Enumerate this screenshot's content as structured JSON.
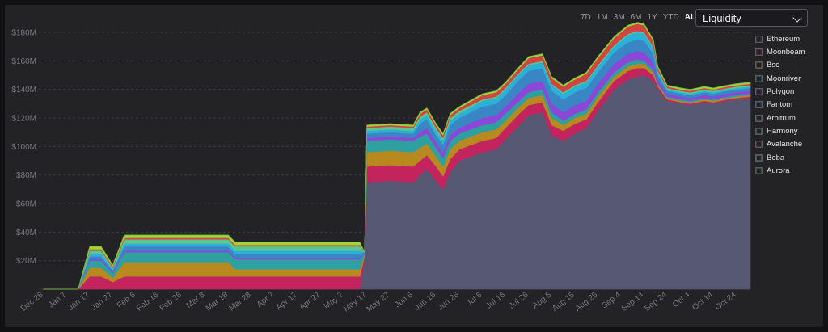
{
  "time_ranges": [
    {
      "label": "7D",
      "active": false
    },
    {
      "label": "1M",
      "active": false
    },
    {
      "label": "3M",
      "active": false
    },
    {
      "label": "6M",
      "active": false
    },
    {
      "label": "1Y",
      "active": false
    },
    {
      "label": "YTD",
      "active": false
    },
    {
      "label": "ALL",
      "active": true
    }
  ],
  "metric_select": {
    "value": "Liquidity",
    "icon": "chevron-down-icon"
  },
  "chart_data": {
    "type": "area",
    "stacked": true,
    "y_tick_labels": [
      "$20M",
      "$40M",
      "$60M",
      "$80M",
      "$100M",
      "$120M",
      "$140M",
      "$160M",
      "$180M"
    ],
    "y_ticks": [
      20,
      40,
      60,
      80,
      100,
      120,
      140,
      160,
      180
    ],
    "ylim": [
      0,
      180
    ],
    "y_unit": "$M",
    "grid": true,
    "legend_position": "right",
    "x_tick_labels": [
      "Dec 28",
      "Jan 7",
      "Jan 17",
      "Jan 27",
      "Feb 6",
      "Feb 16",
      "Feb 26",
      "Mar 8",
      "Mar 18",
      "Mar 28",
      "Apr 7",
      "Apr 17",
      "Apr 27",
      "May 7",
      "May 17",
      "May 27",
      "Jun 6",
      "Jun 16",
      "Jun 26",
      "Jul 6",
      "Jul 16",
      "Jul 26",
      "Aug 5",
      "Aug 15",
      "Aug 25",
      "Sep 4",
      "Sep 14",
      "Sep 24",
      "Oct 4",
      "Oct 14",
      "Oct 24"
    ],
    "x": [
      "Dec 28",
      "Jan 7",
      "Jan 12",
      "Jan 17",
      "Jan 22",
      "Jan 27",
      "Feb 1",
      "Feb 6",
      "Mar 18",
      "Mar 21",
      "May 14",
      "May 16",
      "May 17",
      "May 27",
      "Jun 6",
      "Jun 9",
      "Jun 12",
      "Jun 16",
      "Jun 19",
      "Jun 22",
      "Jun 26",
      "Jul 6",
      "Jul 12",
      "Jul 16",
      "Jul 22",
      "Jul 26",
      "Aug 1",
      "Aug 5",
      "Aug 10",
      "Aug 15",
      "Aug 20",
      "Aug 25",
      "Sep 1",
      "Sep 7",
      "Sep 11",
      "Sep 14",
      "Sep 18",
      "Sep 20",
      "Sep 24",
      "Sep 30",
      "Oct 4",
      "Oct 10",
      "Oct 14",
      "Oct 20",
      "Oct 24",
      "Oct 30"
    ],
    "series": [
      {
        "name": "Ethereum",
        "color": "#575873",
        "values": [
          0,
          0,
          0,
          0,
          0,
          0,
          0,
          0,
          0,
          0,
          0,
          20,
          75,
          76,
          75,
          80,
          84,
          76,
          70,
          82,
          90,
          96,
          98,
          105,
          115,
          122,
          124,
          108,
          104,
          109,
          113,
          125,
          140,
          147,
          149,
          150,
          146,
          140,
          132,
          130,
          129,
          131,
          130,
          132,
          133,
          134
        ]
      },
      {
        "name": "Moonbeam",
        "color": "#c4245e",
        "values": [
          0,
          0,
          0,
          9,
          9,
          5,
          9,
          9,
          9,
          9,
          9,
          3,
          11,
          11,
          11,
          10,
          10,
          10,
          9,
          9,
          8,
          8,
          8,
          8,
          8,
          7,
          7,
          7,
          7,
          7,
          6,
          6,
          6,
          6,
          6,
          5,
          4,
          2,
          1,
          1,
          1,
          1,
          1,
          1,
          1,
          1
        ]
      },
      {
        "name": "Bsc",
        "color": "#b8891f",
        "values": [
          0,
          0,
          0,
          6,
          6,
          3,
          10,
          10,
          10,
          5,
          5,
          1,
          10,
          10,
          10,
          9,
          8,
          7,
          7,
          7,
          6,
          6,
          6,
          5,
          5,
          5,
          5,
          5,
          4,
          4,
          4,
          4,
          3,
          3,
          3,
          3,
          2,
          1,
          1,
          1,
          1,
          1,
          1,
          1,
          1,
          1
        ]
      },
      {
        "name": "Moonriver",
        "color": "#2fa0a0",
        "values": [
          0,
          0,
          0,
          5,
          5,
          3,
          7,
          7,
          7,
          7,
          7,
          1,
          8,
          8,
          8,
          8,
          7,
          6,
          6,
          6,
          5,
          5,
          5,
          5,
          4,
          4,
          4,
          4,
          3,
          3,
          3,
          3,
          3,
          3,
          3,
          2,
          2,
          1,
          1,
          1,
          1,
          1,
          1,
          1,
          1,
          1
        ]
      },
      {
        "name": "Polygon",
        "color": "#8b48d8",
        "values": [
          0,
          0,
          0,
          1,
          1,
          1,
          1,
          1,
          1,
          1,
          1,
          0,
          2,
          2,
          2,
          3,
          4,
          4,
          4,
          4,
          4,
          5,
          5,
          5,
          6,
          6,
          6,
          6,
          6,
          6,
          6,
          6,
          6,
          6,
          6,
          6,
          5,
          3,
          2,
          2,
          2,
          2,
          2,
          2,
          2,
          2
        ]
      },
      {
        "name": "Fantom",
        "color": "#3a86c4",
        "values": [
          0,
          0,
          0,
          2,
          2,
          1,
          3,
          3,
          3,
          3,
          3,
          1,
          3,
          3,
          3,
          6,
          6,
          5,
          5,
          7,
          7,
          8,
          8,
          8,
          9,
          9,
          9,
          9,
          9,
          9,
          9,
          8,
          8,
          8,
          8,
          8,
          6,
          3,
          2,
          2,
          2,
          2,
          2,
          2,
          2,
          2
        ]
      },
      {
        "name": "Arbitrum",
        "color": "#2bb0d8",
        "values": [
          0,
          0,
          0,
          2,
          2,
          1,
          2,
          2,
          2,
          2,
          2,
          0,
          2,
          2,
          2,
          3,
          3,
          3,
          3,
          3,
          3,
          4,
          4,
          4,
          4,
          4,
          4,
          4,
          4,
          4,
          4,
          4,
          4,
          5,
          5,
          5,
          4,
          2,
          1,
          1,
          1,
          1,
          1,
          1,
          1,
          1
        ]
      },
      {
        "name": "Harmony",
        "color": "#5cc48f",
        "values": [
          0,
          0,
          0,
          2,
          2,
          1,
          3,
          3,
          3,
          3,
          3,
          0,
          2,
          2,
          2,
          2,
          2,
          2,
          2,
          2,
          2,
          1,
          1,
          1,
          1,
          1,
          1,
          1,
          1,
          1,
          1,
          1,
          1,
          1,
          1,
          1,
          1,
          1,
          1,
          1,
          1,
          1,
          1,
          1,
          1,
          1
        ]
      },
      {
        "name": "Avalanche",
        "color": "#d2443f",
        "values": [
          0,
          0,
          0,
          1,
          1,
          1,
          1,
          1,
          1,
          1,
          1,
          0,
          1,
          1,
          1,
          2,
          2,
          2,
          2,
          2,
          2,
          3,
          3,
          3,
          3,
          4,
          4,
          4,
          4,
          4,
          5,
          5,
          5,
          5,
          5,
          5,
          4,
          2,
          1,
          1,
          1,
          1,
          1,
          1,
          1,
          1
        ]
      },
      {
        "name": "Boba",
        "color": "#9ed33a",
        "values": [
          0,
          0,
          0,
          2,
          2,
          1,
          2,
          2,
          2,
          2,
          2,
          0,
          1,
          1,
          1,
          1,
          1,
          1,
          1,
          1,
          1,
          1,
          1,
          1,
          1,
          1,
          1,
          1,
          1,
          1,
          1,
          1,
          1,
          1,
          1,
          1,
          1,
          1,
          1,
          1,
          1,
          1,
          1,
          1,
          1,
          1
        ]
      },
      {
        "name": "Aurora",
        "color": "#58b842",
        "values": [
          0,
          0,
          0,
          0,
          0,
          0,
          0,
          0,
          0,
          0,
          0,
          0,
          0,
          0,
          0,
          0,
          0,
          0,
          0,
          0,
          0,
          0,
          0,
          0,
          0,
          0,
          0,
          0,
          0,
          0,
          0,
          0,
          0,
          0,
          0,
          0,
          0,
          0,
          0,
          0,
          0,
          0,
          0,
          0,
          0,
          0
        ]
      }
    ]
  }
}
